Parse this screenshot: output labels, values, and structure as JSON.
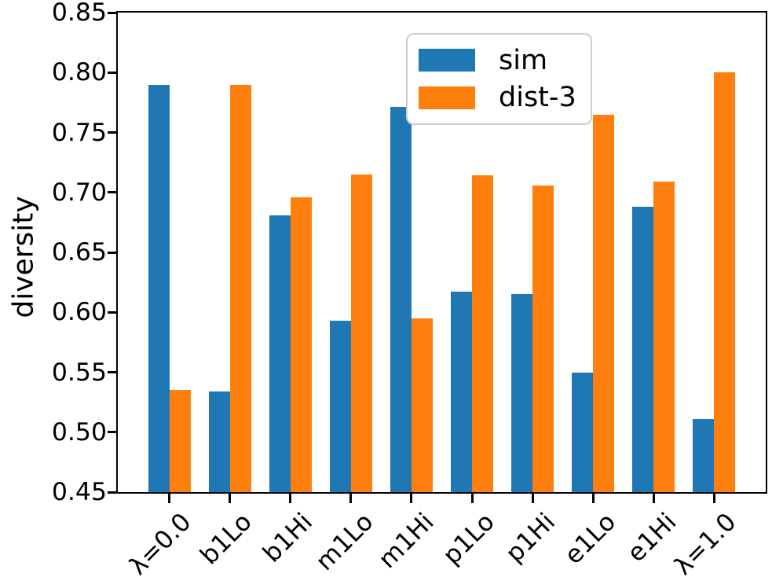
{
  "chart_data": {
    "type": "bar",
    "ylabel": "diversity",
    "xlabel": "",
    "categories": [
      "λ=0.0",
      "b1Lo",
      "b1Hi",
      "m1Lo",
      "m1Hi",
      "p1Lo",
      "p1Hi",
      "e1Lo",
      "e1Hi",
      "λ=1.0"
    ],
    "series": [
      {
        "name": "sim",
        "color": "#1f77b4",
        "values": [
          0.79,
          0.534,
          0.681,
          0.593,
          0.771,
          0.617,
          0.615,
          0.55,
          0.688,
          0.511
        ]
      },
      {
        "name": "dist-3",
        "color": "#ff7f0e",
        "values": [
          0.535,
          0.79,
          0.696,
          0.715,
          0.595,
          0.714,
          0.706,
          0.765,
          0.709,
          0.8
        ]
      }
    ],
    "ylim": [
      0.45,
      0.85
    ],
    "yticks": [
      "0.45",
      "0.50",
      "0.55",
      "0.60",
      "0.65",
      "0.70",
      "0.75",
      "0.80",
      "0.85"
    ],
    "xtick_rotation": -45,
    "legend_position": "upper center",
    "grid": false,
    "bar_width": 0.35,
    "axis_color": "#000000",
    "background_color": "#ffffff"
  }
}
